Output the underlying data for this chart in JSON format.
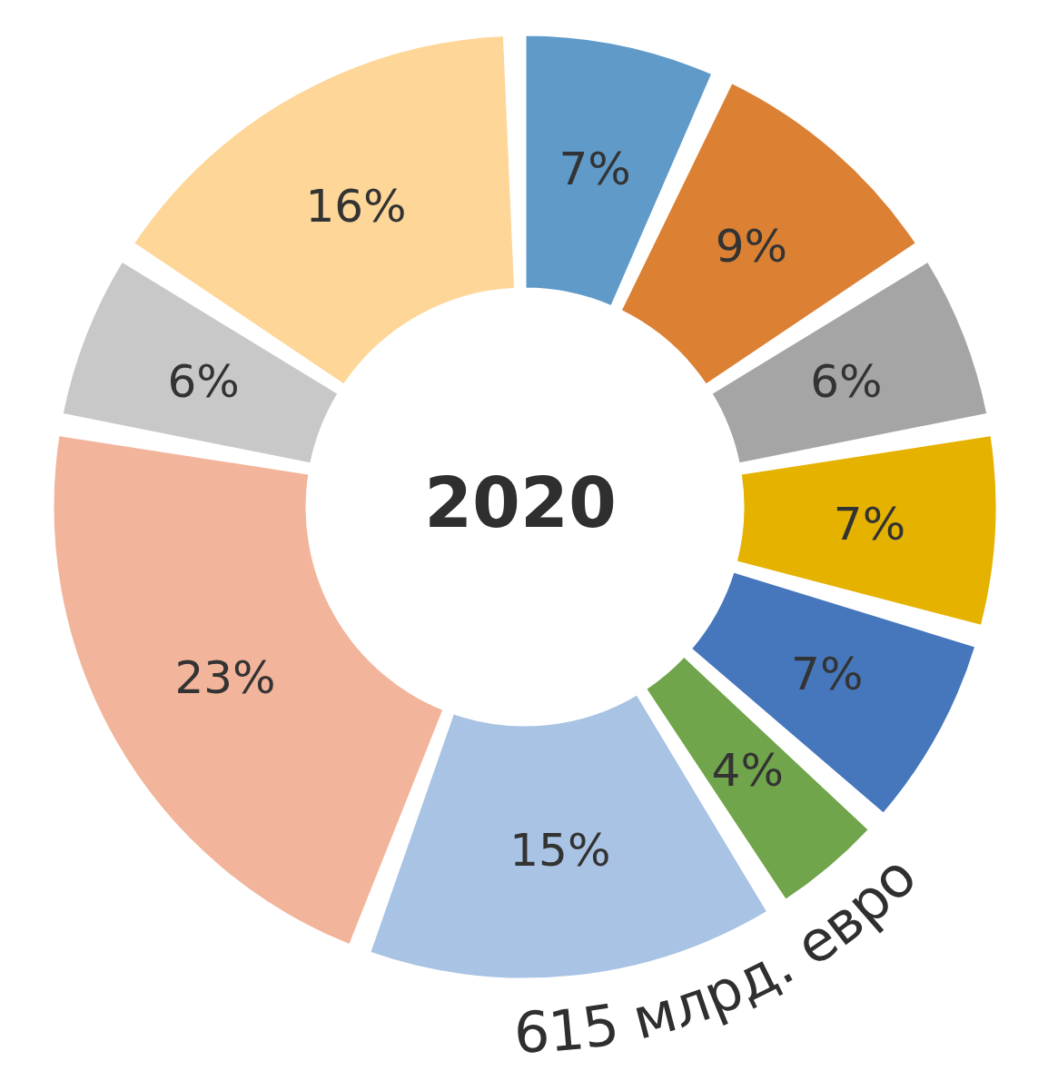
{
  "chart_data": {
    "type": "donut",
    "title": "2020",
    "categories": [
      null,
      null,
      null,
      null,
      null,
      null,
      null,
      null,
      null,
      null
    ],
    "values": [
      7,
      9,
      6,
      7,
      7,
      4,
      15,
      23,
      6,
      16
    ],
    "value_labels": [
      "7%",
      "9%",
      "6%",
      "7%",
      "7%",
      "4%",
      "15%",
      "23%",
      "6%",
      "16%"
    ],
    "colors": [
      "#5f9ac9",
      "#dc8033",
      "#a5a5a5",
      "#e6b200",
      "#4677bc",
      "#70a54b",
      "#a8c3e3",
      "#f2b49a",
      "#c8c8c8",
      "#fdd698"
    ],
    "annotations": [
      "615 млрд. евро"
    ],
    "legend": false
  }
}
